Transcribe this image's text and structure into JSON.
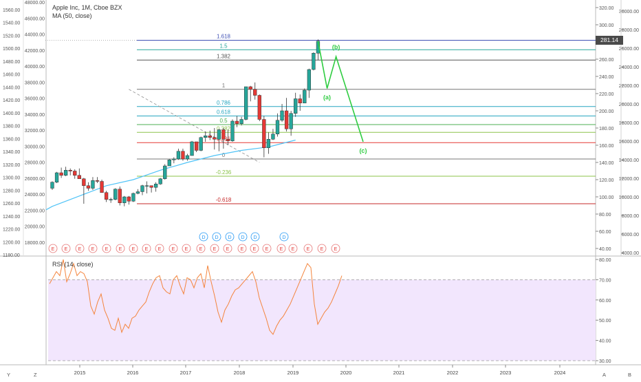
{
  "legend": {
    "title": "Apple Inc, 1M, Cboe BZX",
    "ma": "MA (50, close)",
    "rsi": "RSI (14, close)"
  },
  "price_tag": "281.14",
  "corner": {
    "y": "Y",
    "z": "Z",
    "a": "A",
    "b": "B"
  },
  "colors": {
    "up": "#26a69a",
    "down": "#e53935",
    "ma": "#4fc3f7",
    "rsi": "#f4843c",
    "rsi_band": "#f2e6fd",
    "projection": "#2ecc40"
  },
  "chart_data": [
    {
      "type": "candlestick",
      "title": "Apple Inc, 1M, Cboe BZX",
      "right_axis": {
        "ylim": [
          20,
          330
        ],
        "ticks": [
          40,
          60,
          80,
          100,
          120,
          140,
          160,
          180,
          200,
          220,
          240,
          260,
          280,
          300,
          320
        ],
        "tick_labels": [
          "40.00",
          "60.00",
          "80.00",
          "100.00",
          "120.00",
          "140.00",
          "160.00",
          "180.00",
          "200.00",
          "220.00",
          "240.00",
          "260.00",
          "280.00",
          "300.00",
          "320.00"
        ]
      },
      "right_axis_2": {
        "ticks": [
          4000,
          6000,
          8000,
          10000,
          12000,
          14000,
          16000,
          18000,
          20000,
          22000,
          24000,
          26000,
          28000,
          30000
        ],
        "tick_labels": [
          "4000.00",
          "6000.00",
          "8000.00",
          "10000.00",
          "12000.00",
          "14000.00",
          "16000.00",
          "18000.00",
          "20000.00",
          "22000.00",
          "24000.00",
          "26000.00",
          "28000.00",
          "30000.00"
        ]
      },
      "left_axis": {
        "ticks": [
          1180,
          1200,
          1220,
          1240,
          1260,
          1280,
          1300,
          1320,
          1340,
          1360,
          1380,
          1400,
          1420,
          1440,
          1460,
          1480,
          1500,
          1520,
          1540,
          1560
        ],
        "tick_labels": [
          "1180.00",
          "1200.00",
          "1220.00",
          "1240.00",
          "1260.00",
          "1280.00",
          "1300.00",
          "1320.00",
          "1340.00",
          "1360.00",
          "1380.00",
          "1400.00",
          "1420.00",
          "1440.00",
          "1460.00",
          "1480.00",
          "1500.00",
          "1520.00",
          "1540.00",
          "1560.00"
        ]
      },
      "left_axis_2": {
        "ticks": [
          18000,
          20000,
          22000,
          24000,
          26000,
          28000,
          30000,
          32000,
          34000,
          36000,
          38000,
          40000,
          42000,
          44000,
          46000,
          48000
        ],
        "tick_labels": [
          "18000.00",
          "20000.00",
          "22000.00",
          "24000.00",
          "26000.00",
          "28000.00",
          "30000.00",
          "32000.00",
          "34000.00",
          "36000.00",
          "38000.00",
          "40000.00",
          "42000.00",
          "44000.00",
          "46000.00",
          "48000.00"
        ]
      },
      "x_axis": {
        "tick_labels": [
          "2015",
          "2016",
          "2017",
          "2018",
          "2019",
          "2020",
          "2021",
          "2022",
          "2023",
          "2024"
        ]
      },
      "ohlc": [
        [
          110,
          118,
          108,
          117
        ],
        [
          117,
          129,
          116,
          128
        ],
        [
          128,
          134,
          122,
          125
        ],
        [
          125,
          135,
          124,
          131
        ],
        [
          131,
          133,
          125,
          130
        ],
        [
          130,
          132,
          121,
          125
        ],
        [
          125,
          133,
          122,
          121
        ],
        [
          121,
          122,
          92,
          113
        ],
        [
          113,
          117,
          107,
          110
        ],
        [
          110,
          123,
          108,
          119
        ],
        [
          119,
          123,
          116,
          118
        ],
        [
          118,
          120,
          105,
          105
        ],
        [
          105,
          107,
          94,
          97
        ],
        [
          97,
          99,
          93,
          97
        ],
        [
          97,
          110,
          96,
          109
        ],
        [
          109,
          112,
          90,
          93
        ],
        [
          93,
          101,
          89,
          100
        ],
        [
          100,
          101,
          91,
          95
        ],
        [
          95,
          105,
          94,
          104
        ],
        [
          104,
          109,
          103,
          106
        ],
        [
          106,
          114,
          102,
          113
        ],
        [
          113,
          118,
          104,
          113
        ],
        [
          113,
          112,
          105,
          111
        ],
        [
          111,
          117,
          106,
          115
        ],
        [
          115,
          122,
          114,
          121
        ],
        [
          121,
          138,
          120,
          136
        ],
        [
          136,
          144,
          136,
          143
        ],
        [
          143,
          146,
          139,
          144
        ],
        [
          144,
          156,
          143,
          153
        ],
        [
          153,
          156,
          142,
          144
        ],
        [
          144,
          150,
          142,
          148
        ],
        [
          148,
          165,
          148,
          164
        ],
        [
          164,
          164,
          152,
          154
        ],
        [
          154,
          170,
          153,
          169
        ],
        [
          169,
          176,
          164,
          171
        ],
        [
          171,
          177,
          166,
          169
        ],
        [
          169,
          180,
          155,
          167
        ],
        [
          167,
          179,
          153,
          178
        ],
        [
          178,
          180,
          156,
          167
        ],
        [
          167,
          178,
          160,
          165
        ],
        [
          165,
          190,
          164,
          188
        ],
        [
          188,
          194,
          181,
          185
        ],
        [
          185,
          193,
          183,
          190
        ],
        [
          190,
          228,
          189,
          228
        ],
        [
          228,
          229,
          211,
          225
        ],
        [
          225,
          233,
          213,
          218
        ],
        [
          218,
          219,
          188,
          190
        ],
        [
          190,
          194,
          146,
          157
        ],
        [
          157,
          175,
          150,
          167
        ],
        [
          167,
          179,
          166,
          173
        ],
        [
          173,
          197,
          170,
          189
        ],
        [
          189,
          208,
          187,
          200
        ],
        [
          200,
          215,
          176,
          179
        ],
        [
          179,
          200,
          171,
          197
        ],
        [
          197,
          221,
          193,
          214
        ],
        [
          214,
          219,
          200,
          209
        ],
        [
          209,
          226,
          209,
          224
        ],
        [
          224,
          249,
          215,
          248
        ],
        [
          248,
          268,
          247,
          267
        ],
        [
          267,
          283,
          259,
          281
        ]
      ],
      "ma50": [
        [
          0,
          89
        ],
        [
          6,
          101
        ],
        [
          12,
          113
        ],
        [
          18,
          120
        ],
        [
          24,
          131
        ],
        [
          30,
          140
        ],
        [
          36,
          148
        ],
        [
          42,
          154
        ],
        [
          48,
          158
        ],
        [
          54,
          166
        ]
      ],
      "fibonacci": [
        {
          "label": "1.618",
          "value": 282,
          "color": "#3f51b5"
        },
        {
          "label": "1.5",
          "value": 271,
          "color": "#26a69a"
        },
        {
          "label": "1.382",
          "value": 259,
          "color": "#555555"
        },
        {
          "label": "1",
          "value": 225,
          "color": "#777777"
        },
        {
          "label": "0.786",
          "value": 205,
          "color": "#26a6c0"
        },
        {
          "label": "0.618",
          "value": 194,
          "color": "#26a6c0"
        },
        {
          "label": "0.5",
          "value": 184,
          "color": "#4caf50"
        },
        {
          "label": "0.382",
          "value": 175,
          "color": "#8bc34a"
        },
        {
          "label": "0.236",
          "value": 163,
          "color": "#e53935"
        },
        {
          "label": "0",
          "value": 144,
          "color": "#777777"
        },
        {
          "label": "-0.236",
          "value": 124,
          "color": "#8bc34a"
        },
        {
          "label": "-0.618",
          "value": 92,
          "color": "#c62828"
        }
      ],
      "fib_base_line": [
        [
          17,
          225
        ],
        [
          46,
          140
        ]
      ],
      "projection": [
        {
          "label": "",
          "x": 59,
          "y": 281
        },
        {
          "label": "(a)",
          "x": 61,
          "y": 226
        },
        {
          "label": "(b)",
          "x": 63,
          "y": 263
        },
        {
          "label": "(c)",
          "x": 69,
          "y": 164
        }
      ],
      "dividends": [
        "D",
        "D",
        "D",
        "D",
        "D",
        "D",
        "D"
      ],
      "earnings": [
        "E",
        "E",
        "E",
        "E",
        "E",
        "E",
        "E",
        "E",
        "E",
        "E",
        "E",
        "E",
        "E",
        "E",
        "E",
        "E",
        "E",
        "E",
        "E",
        "E",
        "E",
        "E"
      ]
    },
    {
      "type": "line",
      "title": "RSI (14, close)",
      "ylim": [
        28,
        82
      ],
      "ticks": [
        30,
        40,
        50,
        60,
        70,
        80
      ],
      "tick_labels": [
        "30.00",
        "40.00",
        "50.00",
        "60.00",
        "70.00",
        "80.00"
      ],
      "band": [
        30,
        70
      ],
      "values": [
        68,
        71,
        74,
        72,
        80,
        69,
        73,
        78,
        72,
        74,
        73,
        69,
        57,
        53,
        59,
        63,
        55,
        51,
        46,
        45,
        51,
        44,
        48,
        46,
        51,
        52,
        55,
        57,
        59,
        64,
        68,
        71,
        72,
        66,
        64,
        63,
        70,
        72,
        67,
        63,
        71,
        70,
        66,
        71,
        73,
        66,
        77,
        69,
        62,
        54,
        49,
        55,
        58,
        62,
        65,
        66,
        68,
        70,
        72,
        74,
        69,
        61,
        56,
        51,
        45,
        43,
        47,
        50,
        52,
        55,
        58,
        62,
        66,
        70,
        74,
        78,
        76,
        58,
        48,
        51,
        54,
        56,
        59,
        63,
        67,
        72
      ]
    }
  ]
}
